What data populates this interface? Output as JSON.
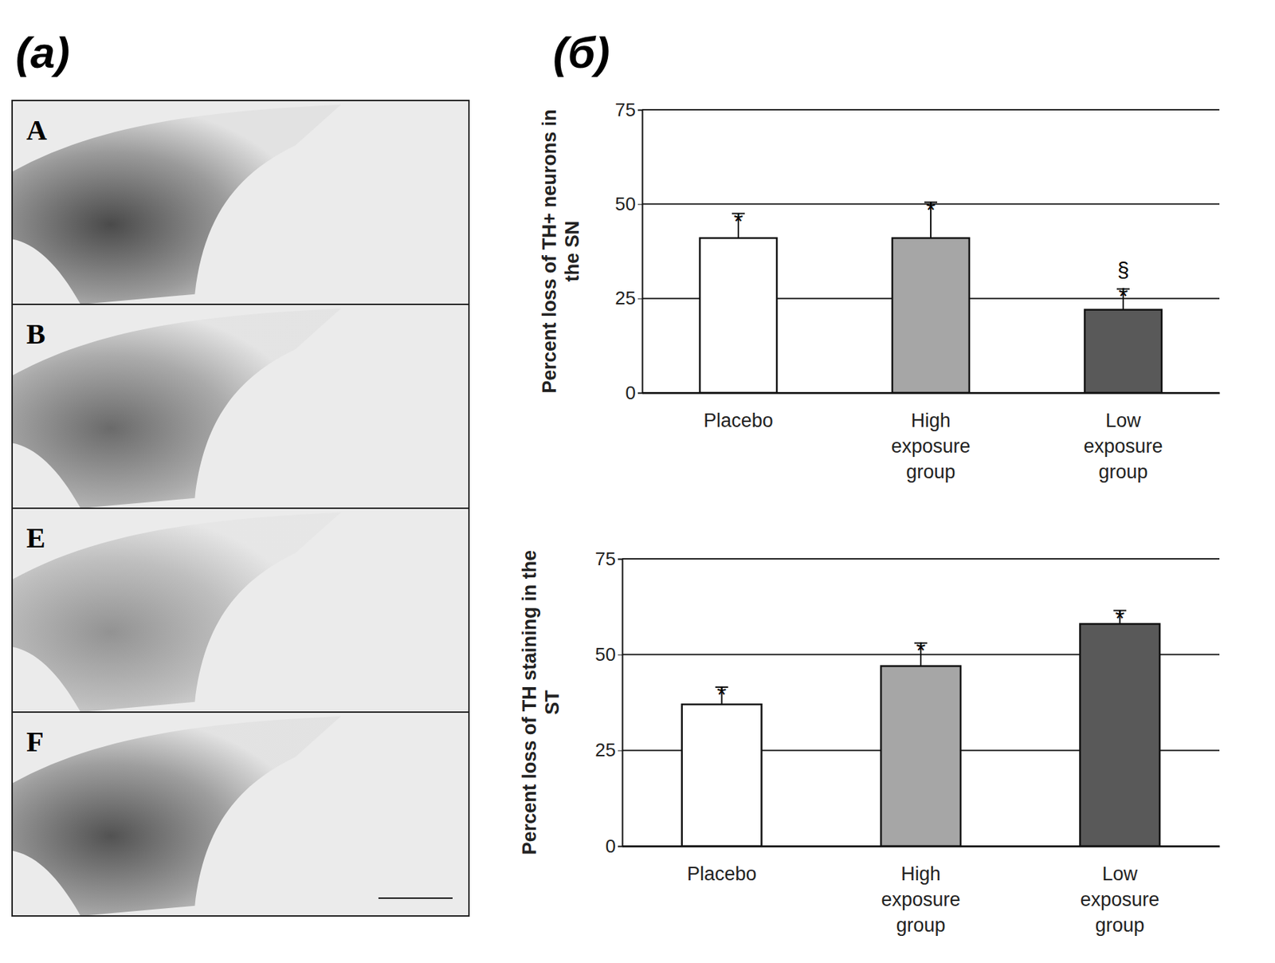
{
  "panels": {
    "a_label": "(а)",
    "b_label": "(б)",
    "image_labels": [
      "A",
      "B",
      "E",
      "F"
    ]
  },
  "chart_data": [
    {
      "type": "bar",
      "y_label": "Percent loss of TH+ neurons in the SN",
      "categories": [
        "Placebo",
        "High exposure group",
        "Low exposure group"
      ],
      "values": [
        41,
        41,
        22
      ],
      "errors": [
        6.5,
        9.5,
        5.5
      ],
      "colors": [
        "#ffffff",
        "#a6a6a6",
        "#595959"
      ],
      "annotations": [
        [
          "*"
        ],
        [
          "*"
        ],
        [
          "§",
          "*"
        ]
      ],
      "ylim": [
        0,
        75
      ],
      "yticks": [
        0,
        25,
        50,
        75
      ],
      "grid": true
    },
    {
      "type": "bar",
      "y_label": "Percent loss of TH staining in the ST",
      "categories": [
        "Placebo",
        "High exposure group",
        "Low exposure group"
      ],
      "values": [
        37,
        47,
        58
      ],
      "errors": [
        4.5,
        6,
        3.5
      ],
      "colors": [
        "#ffffff",
        "#a6a6a6",
        "#595959"
      ],
      "annotations": [
        [
          "*"
        ],
        [
          "*"
        ],
        [
          "*"
        ]
      ],
      "ylim": [
        0,
        75
      ],
      "yticks": [
        0,
        25,
        50,
        75
      ],
      "grid": true
    }
  ]
}
